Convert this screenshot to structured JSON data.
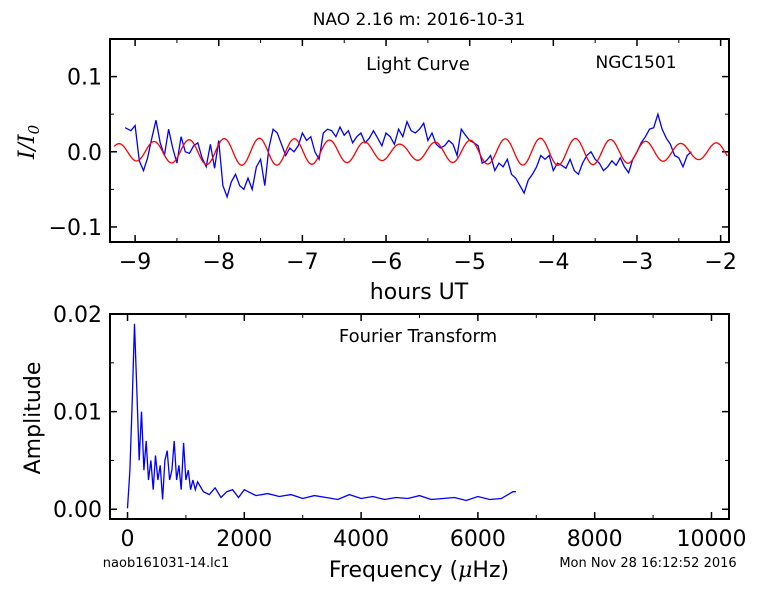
{
  "figure": {
    "title": "NAO 2.16 m:  2016-10-31",
    "footer_left": "naob161031-14.lc1",
    "footer_right": "Mon Nov 28 16:12:52 2016"
  },
  "chart_data": [
    {
      "type": "line",
      "annotation": "Light Curve",
      "object_label": "NGC1501",
      "xlabel": "hours UT",
      "ylabel": "I/I0",
      "ylabel_parts": {
        "main": "I/I",
        "sub": "0"
      },
      "xlim": [
        -9.3,
        -1.9
      ],
      "ylim": [
        -0.12,
        0.15
      ],
      "xticks": [
        -9,
        -8,
        -7,
        -6,
        -5,
        -4,
        -3,
        -2
      ],
      "xtick_labels": [
        "−9",
        "−8",
        "−7",
        "−6",
        "−5",
        "−4",
        "−3",
        "−2"
      ],
      "yticks": [
        -0.1,
        0.0,
        0.1
      ],
      "ytick_labels": [
        "−0.1",
        "0.0",
        "0.1"
      ],
      "grid": false,
      "series": [
        {
          "color": "#0000ff",
          "x": [
            -9.12,
            -9.05,
            -9.0,
            -8.95,
            -8.9,
            -8.85,
            -8.8,
            -8.75,
            -8.7,
            -8.65,
            -8.6,
            -8.55,
            -8.5,
            -8.45,
            -8.4,
            -8.35,
            -8.3,
            -8.25,
            -8.2,
            -8.15,
            -8.1,
            -8.05,
            -8.0,
            -7.95,
            -7.9,
            -7.85,
            -7.8,
            -7.75,
            -7.7,
            -7.65,
            -7.6,
            -7.55,
            -7.5,
            -7.45,
            -7.4,
            -7.35,
            -7.3,
            -7.25,
            -7.2,
            -7.15,
            -7.1,
            -7.05,
            -7.0,
            -6.95,
            -6.9,
            -6.85,
            -6.8,
            -6.75,
            -6.7,
            -6.65,
            -6.6,
            -6.55,
            -6.5,
            -6.45,
            -6.4,
            -6.35,
            -6.3,
            -6.25,
            -6.2,
            -6.15,
            -6.1,
            -6.05,
            -6.0,
            -5.95,
            -5.9,
            -5.85,
            -5.8,
            -5.75,
            -5.7,
            -5.65,
            -5.6,
            -5.55,
            -5.5,
            -5.45,
            -5.4,
            -5.35,
            -5.3,
            -5.25,
            -5.2,
            -5.15,
            -5.1,
            -5.05,
            -5.0,
            -4.95,
            -4.9,
            -4.85,
            -4.8,
            -4.75,
            -4.7,
            -4.65,
            -4.6,
            -4.55,
            -4.5,
            -4.45,
            -4.4,
            -4.35,
            -4.3,
            -4.25,
            -4.2,
            -4.15,
            -4.1,
            -4.05,
            -4.0,
            -3.95,
            -3.9,
            -3.85,
            -3.8,
            -3.75,
            -3.7,
            -3.65,
            -3.6,
            -3.55,
            -3.5,
            -3.45,
            -3.4,
            -3.35,
            -3.3,
            -3.25,
            -3.2,
            -3.15,
            -3.1,
            -3.05,
            -3.0,
            -2.95,
            -2.9,
            -2.85,
            -2.8,
            -2.75,
            -2.7,
            -2.65,
            -2.6,
            -2.55,
            -2.5,
            -2.45,
            -2.4,
            -2.35
          ],
          "y": [
            0.032,
            0.028,
            0.035,
            -0.012,
            -0.025,
            -0.008,
            0.018,
            0.042,
            0.012,
            -0.005,
            0.03,
            0.005,
            -0.015,
            0.02,
            0.0,
            -0.002,
            0.008,
            0.012,
            -0.008,
            -0.02,
            0.01,
            -0.022,
            0.015,
            -0.045,
            -0.06,
            -0.04,
            -0.03,
            -0.045,
            -0.05,
            -0.035,
            -0.05,
            -0.02,
            -0.01,
            -0.045,
            0.005,
            0.03,
            0.025,
            0.01,
            -0.005,
            0.005,
            0.0,
            0.008,
            0.025,
            0.015,
            0.02,
            0.0,
            -0.01,
            0.025,
            0.03,
            0.028,
            0.02,
            0.033,
            0.022,
            0.028,
            0.012,
            0.02,
            0.025,
            0.012,
            0.018,
            0.028,
            0.018,
            0.008,
            0.025,
            0.02,
            0.01,
            0.03,
            0.02,
            0.04,
            0.028,
            0.025,
            0.03,
            0.038,
            0.015,
            0.025,
            0.01,
            0.005,
            0.008,
            0.015,
            0.01,
            -0.005,
            0.03,
            0.022,
            0.015,
            0.012,
            0.008,
            -0.015,
            -0.012,
            -0.005,
            -0.025,
            -0.015,
            -0.02,
            -0.01,
            -0.03,
            -0.035,
            -0.045,
            -0.055,
            -0.038,
            -0.03,
            -0.02,
            -0.005,
            -0.01,
            -0.005,
            -0.025,
            -0.015,
            -0.018,
            -0.022,
            -0.01,
            -0.025,
            -0.03,
            -0.015,
            -0.005,
            0.0,
            -0.01,
            -0.015,
            -0.025,
            -0.02,
            -0.012,
            -0.018,
            -0.008,
            -0.02,
            -0.028,
            -0.01,
            0.0,
            0.012,
            0.02,
            0.03,
            0.032,
            0.05,
            0.03,
            0.018,
            0.01,
            -0.005,
            -0.008,
            -0.02,
            -0.005,
            0.0
          ],
          "y_alternate_note": null
        },
        {
          "color": "#ff0000",
          "x": [
            -9.3,
            -1.9
          ],
          "y": [
            0.0,
            0.0
          ]
        }
      ]
    },
    {
      "type": "line",
      "annotation": "Fourier Transform",
      "xlabel": "Frequency (μHz)",
      "xlabel_parts": {
        "pre": "Frequency (",
        "mu": "μ",
        "post": "Hz)"
      },
      "ylabel": "Amplitude",
      "xlim": [
        -300,
        10300
      ],
      "ylim": [
        -0.001,
        0.02
      ],
      "xticks": [
        0,
        2000,
        4000,
        6000,
        8000,
        10000
      ],
      "xtick_labels": [
        "0",
        "2000",
        "4000",
        "6000",
        "8000",
        "10000"
      ],
      "yticks": [
        0.0,
        0.01,
        0.02
      ],
      "ytick_labels": [
        "0.00",
        "0.01",
        "0.02"
      ],
      "grid": false,
      "series": [
        {
          "color": "#0000ff",
          "x": [
            0,
            40,
            80,
            120,
            160,
            200,
            240,
            280,
            320,
            360,
            400,
            440,
            480,
            520,
            560,
            600,
            640,
            680,
            720,
            760,
            800,
            840,
            880,
            920,
            960,
            1000,
            1040,
            1080,
            1120,
            1160,
            1200,
            1300,
            1400,
            1500,
            1600,
            1700,
            1800,
            1900,
            2000,
            2200,
            2400,
            2600,
            2800,
            3000,
            3200,
            3400,
            3600,
            3800,
            4000,
            4200,
            4400,
            4600,
            4800,
            5000,
            5200,
            5400,
            5600,
            5800,
            6000,
            6200,
            6400,
            6600,
            6650
          ],
          "y": [
            0.0001,
            0.004,
            0.011,
            0.019,
            0.012,
            0.005,
            0.01,
            0.004,
            0.007,
            0.003,
            0.005,
            0.002,
            0.0055,
            0.003,
            0.0045,
            0.001,
            0.005,
            0.006,
            0.003,
            0.004,
            0.007,
            0.003,
            0.0045,
            0.002,
            0.0068,
            0.003,
            0.004,
            0.002,
            0.003,
            0.002,
            0.0028,
            0.0018,
            0.0015,
            0.0022,
            0.0012,
            0.0018,
            0.002,
            0.0012,
            0.002,
            0.0014,
            0.0016,
            0.0013,
            0.0015,
            0.0011,
            0.0014,
            0.0012,
            0.001,
            0.0015,
            0.0011,
            0.0013,
            0.001,
            0.0012,
            0.0011,
            0.0014,
            0.001,
            0.0011,
            0.0012,
            0.0009,
            0.0013,
            0.001,
            0.0011,
            0.0018,
            0.0018
          ]
        }
      ]
    }
  ],
  "colors": {
    "data": "#0000ff",
    "fit": "#ff0000",
    "axes": "#000000"
  }
}
